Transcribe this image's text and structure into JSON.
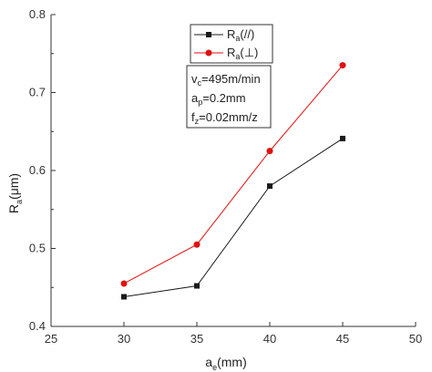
{
  "chart_data": {
    "type": "line",
    "xlabel": {
      "main": "a",
      "sub": "e",
      "rest": "(mm)"
    },
    "ylabel": {
      "main": "R",
      "sub": "a",
      "rest": "(μm)"
    },
    "xlim": [
      25,
      50
    ],
    "ylim": [
      0.4,
      0.8
    ],
    "xticks": [
      25,
      30,
      35,
      40,
      45,
      50
    ],
    "yticks": [
      0.4,
      0.5,
      0.6,
      0.7,
      0.8
    ],
    "ytick_labels": [
      "0.4",
      "0.5",
      "0.6",
      "0.7",
      "0.8"
    ],
    "x": [
      30,
      35,
      40,
      45
    ],
    "series": [
      {
        "name": {
          "main": "R",
          "sub": "a",
          "rest": "(//)"
        },
        "values": [
          0.438,
          0.452,
          0.58,
          0.641
        ],
        "color": "#1a1a1a",
        "marker": "square"
      },
      {
        "name": {
          "main": "R",
          "sub": "a",
          "rest": "(⊥)"
        },
        "values": [
          0.455,
          0.505,
          0.625,
          0.735
        ],
        "color": "#e01010",
        "marker": "circle"
      }
    ],
    "annotations": [
      {
        "main": "v",
        "sub": "c",
        "rest": "=495m/min"
      },
      {
        "main": "a",
        "sub": "p",
        "rest": "=0.2mm"
      },
      {
        "main": "f",
        "sub": "z",
        "rest": "=0.02mm/z"
      }
    ],
    "legend_position": "top-right"
  }
}
